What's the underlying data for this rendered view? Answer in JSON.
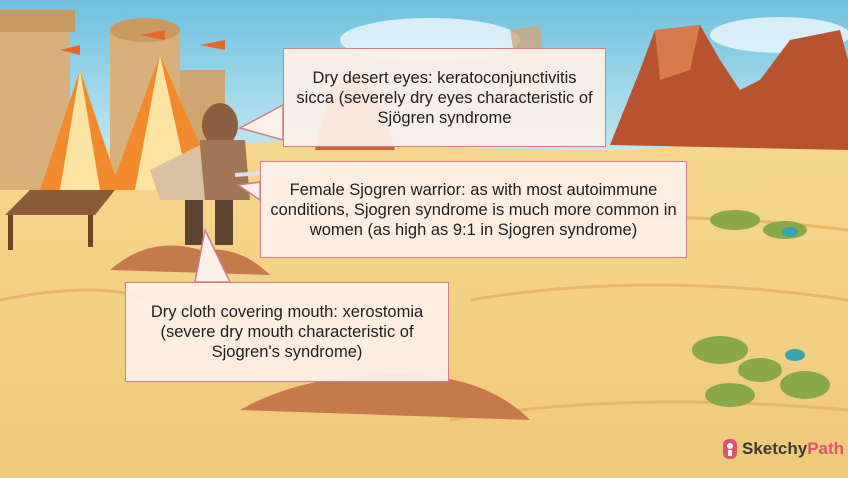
{
  "callouts": {
    "dry_eyes": "Dry desert eyes: keratoconjunctivitis sicca (severely dry eyes characteristic of Sjögren syndrome",
    "female_warrior": "Female Sjogren warrior: as with most autoimmune conditions, Sjogren syndrome is much more common in women (as high as 9:1 in Sjogren syndrome)",
    "dry_mouth": "Dry cloth covering mouth: xerostomia (severe dry mouth characteristic of Sjogren's syndrome)"
  },
  "logo": {
    "part1": "Sketchy",
    "part2": "Path",
    "icon": "brain-icon"
  },
  "colors": {
    "callout_border": "#cf7e8a",
    "callout_fill": "#fcf0e8",
    "sand": "#f4d48a",
    "sky": "#7ec8e3",
    "accent": "#d9566c"
  }
}
